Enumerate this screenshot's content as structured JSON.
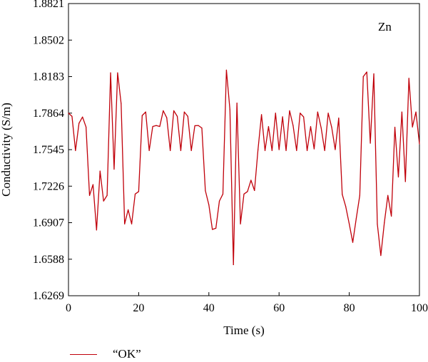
{
  "chart_data": {
    "type": "line",
    "xlabel": "Time (s)",
    "ylabel": "Conductivity (S/m)",
    "xlim": [
      0,
      100
    ],
    "ylim": [
      1.6269,
      1.8821
    ],
    "x_ticks": [
      "0",
      "20",
      "40",
      "60",
      "80",
      "100"
    ],
    "y_ticks": [
      "1.6269",
      "1.6588",
      "1.6907",
      "1.7226",
      "1.7545",
      "1.7864",
      "1.8183",
      "1.8502",
      "1.8821"
    ],
    "annotation": "Zn",
    "grid": false,
    "legend_position": "bottom-left",
    "series": [
      {
        "name": "“OK”",
        "color": "#c0000a",
        "x": [
          0,
          1,
          2,
          3,
          4,
          5,
          6,
          7,
          8,
          9,
          10,
          11,
          12,
          13,
          14,
          15,
          16,
          17,
          18,
          19,
          20,
          21,
          22,
          23,
          24,
          25,
          26,
          27,
          28,
          29,
          30,
          31,
          32,
          33,
          34,
          35,
          36,
          37,
          38,
          39,
          40,
          41,
          42,
          43,
          44,
          45,
          46,
          47,
          48,
          49,
          50,
          51,
          52,
          53,
          54,
          55,
          56,
          57,
          58,
          59,
          60,
          61,
          62,
          63,
          64,
          65,
          66,
          67,
          68,
          69,
          70,
          71,
          72,
          73,
          74,
          75,
          76,
          77,
          78,
          79,
          80,
          81,
          82,
          83,
          84,
          85,
          86,
          87,
          88,
          89,
          90,
          91,
          92,
          93,
          94,
          95,
          96,
          97,
          98,
          99,
          100
        ],
        "y": [
          1.7864,
          1.7836,
          1.7537,
          1.7776,
          1.783,
          1.7743,
          1.7145,
          1.724,
          1.6843,
          1.7358,
          1.7096,
          1.7145,
          1.8216,
          1.7374,
          1.8216,
          1.7947,
          1.6896,
          1.702,
          1.6896,
          1.7157,
          1.7179,
          1.7843,
          1.7874,
          1.7537,
          1.7747,
          1.7756,
          1.7747,
          1.7885,
          1.7824,
          1.7537,
          1.7885,
          1.7836,
          1.7537,
          1.7874,
          1.7836,
          1.7537,
          1.7754,
          1.7756,
          1.7734,
          1.7187,
          1.7063,
          1.6848,
          1.6859,
          1.7096,
          1.7157,
          1.824,
          1.7895,
          1.654,
          1.7952,
          1.6896,
          1.7157,
          1.7179,
          1.7278,
          1.7188,
          1.7545,
          1.7851,
          1.7537,
          1.7747,
          1.7537,
          1.7864,
          1.7545,
          1.7832,
          1.7537,
          1.7885,
          1.7756,
          1.7537,
          1.7864,
          1.7831,
          1.7537,
          1.7747,
          1.7551,
          1.7874,
          1.7735,
          1.7537,
          1.7864,
          1.774,
          1.7545,
          1.7821,
          1.7155,
          1.7048,
          1.6896,
          1.6735,
          1.6945,
          1.7145,
          1.8183,
          1.8223,
          1.7601,
          1.8208,
          1.6896,
          1.662,
          1.6907,
          1.7145,
          1.6964,
          1.7741,
          1.7306,
          1.7874,
          1.7266,
          1.8168,
          1.7743,
          1.7874,
          1.7595
        ]
      }
    ]
  }
}
